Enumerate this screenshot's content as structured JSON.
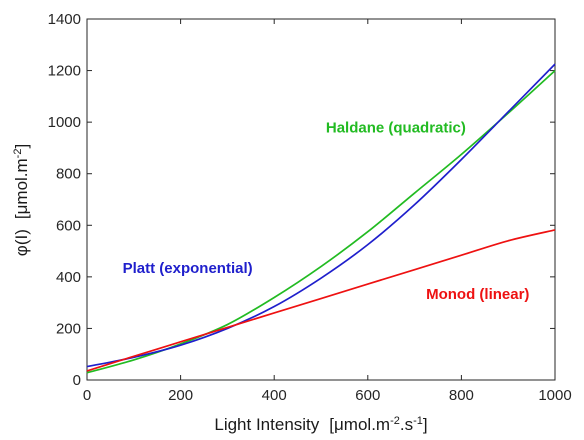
{
  "chart_data": {
    "type": "line",
    "xlabel": "Light Intensity",
    "xlabel_unit": {
      "open": "[μmol.m",
      "sup1": "-2",
      "mid": ".s",
      "sup2": "-1",
      "close": "]"
    },
    "ylabel": "φ(I)",
    "ylabel_unit": {
      "open": "[μmol.m",
      "sup1": "-2",
      "close": "]"
    },
    "xlim": [
      0,
      1000
    ],
    "ylim": [
      0,
      1400
    ],
    "xticks": [
      0,
      200,
      400,
      600,
      800,
      1000
    ],
    "yticks": [
      0,
      200,
      400,
      600,
      800,
      1000,
      1200,
      1400
    ],
    "grid": false,
    "series": [
      {
        "name": "Haldane (quadratic)",
        "color": "#22bb22",
        "x": [
          0,
          100,
          200,
          300,
          400,
          500,
          600,
          700,
          800,
          900,
          1000
        ],
        "y": [
          28,
          78,
          140,
          215,
          320,
          440,
          575,
          725,
          875,
          1035,
          1200
        ],
        "label_x": 660,
        "label_y": 960
      },
      {
        "name": "Platt (exponential)",
        "color": "#1f1fcc",
        "x": [
          0,
          100,
          200,
          300,
          400,
          500,
          600,
          700,
          800,
          900,
          1000
        ],
        "y": [
          52,
          88,
          135,
          200,
          285,
          395,
          525,
          680,
          855,
          1040,
          1225
        ],
        "label_x": 215,
        "label_y": 415
      },
      {
        "name": "Monod (linear)",
        "color": "#ee1111",
        "x": [
          0,
          100,
          200,
          300,
          400,
          500,
          600,
          700,
          800,
          900,
          1000
        ],
        "y": [
          35,
          92,
          148,
          204,
          260,
          316,
          372,
          428,
          484,
          540,
          582
        ],
        "label_x": 835,
        "label_y": 315
      }
    ]
  }
}
